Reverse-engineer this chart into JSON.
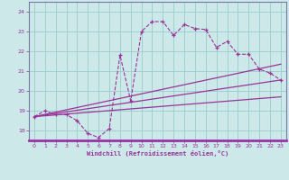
{
  "xlabel": "Windchill (Refroidissement éolien,°C)",
  "bg_color": "#cce8e8",
  "grid_color": "#99cccc",
  "line_color": "#993399",
  "axis_bar_color": "#9933aa",
  "xlim": [
    -0.5,
    23.5
  ],
  "ylim": [
    17.5,
    24.5
  ],
  "xticks": [
    0,
    1,
    2,
    3,
    4,
    5,
    6,
    7,
    8,
    9,
    10,
    11,
    12,
    13,
    14,
    15,
    16,
    17,
    18,
    19,
    20,
    21,
    22,
    23
  ],
  "yticks": [
    18,
    19,
    20,
    21,
    22,
    23,
    24
  ],
  "series1_x": [
    0,
    1,
    2,
    3,
    4,
    5,
    6,
    7,
    8,
    9,
    10,
    11,
    12,
    13,
    14,
    15,
    16,
    17,
    18,
    19,
    20,
    21,
    22,
    23
  ],
  "series1_y": [
    18.7,
    19.0,
    18.8,
    18.8,
    18.5,
    17.85,
    17.65,
    18.1,
    21.8,
    19.5,
    23.0,
    23.5,
    23.5,
    22.8,
    23.35,
    23.15,
    23.1,
    22.2,
    22.5,
    21.85,
    21.85,
    21.1,
    20.9,
    20.55
  ],
  "line2_x": [
    0,
    23
  ],
  "line2_y": [
    18.7,
    20.55
  ],
  "line3_x": [
    0,
    23
  ],
  "line3_y": [
    18.7,
    21.35
  ],
  "line4_x": [
    0,
    23
  ],
  "line4_y": [
    18.7,
    19.7
  ]
}
